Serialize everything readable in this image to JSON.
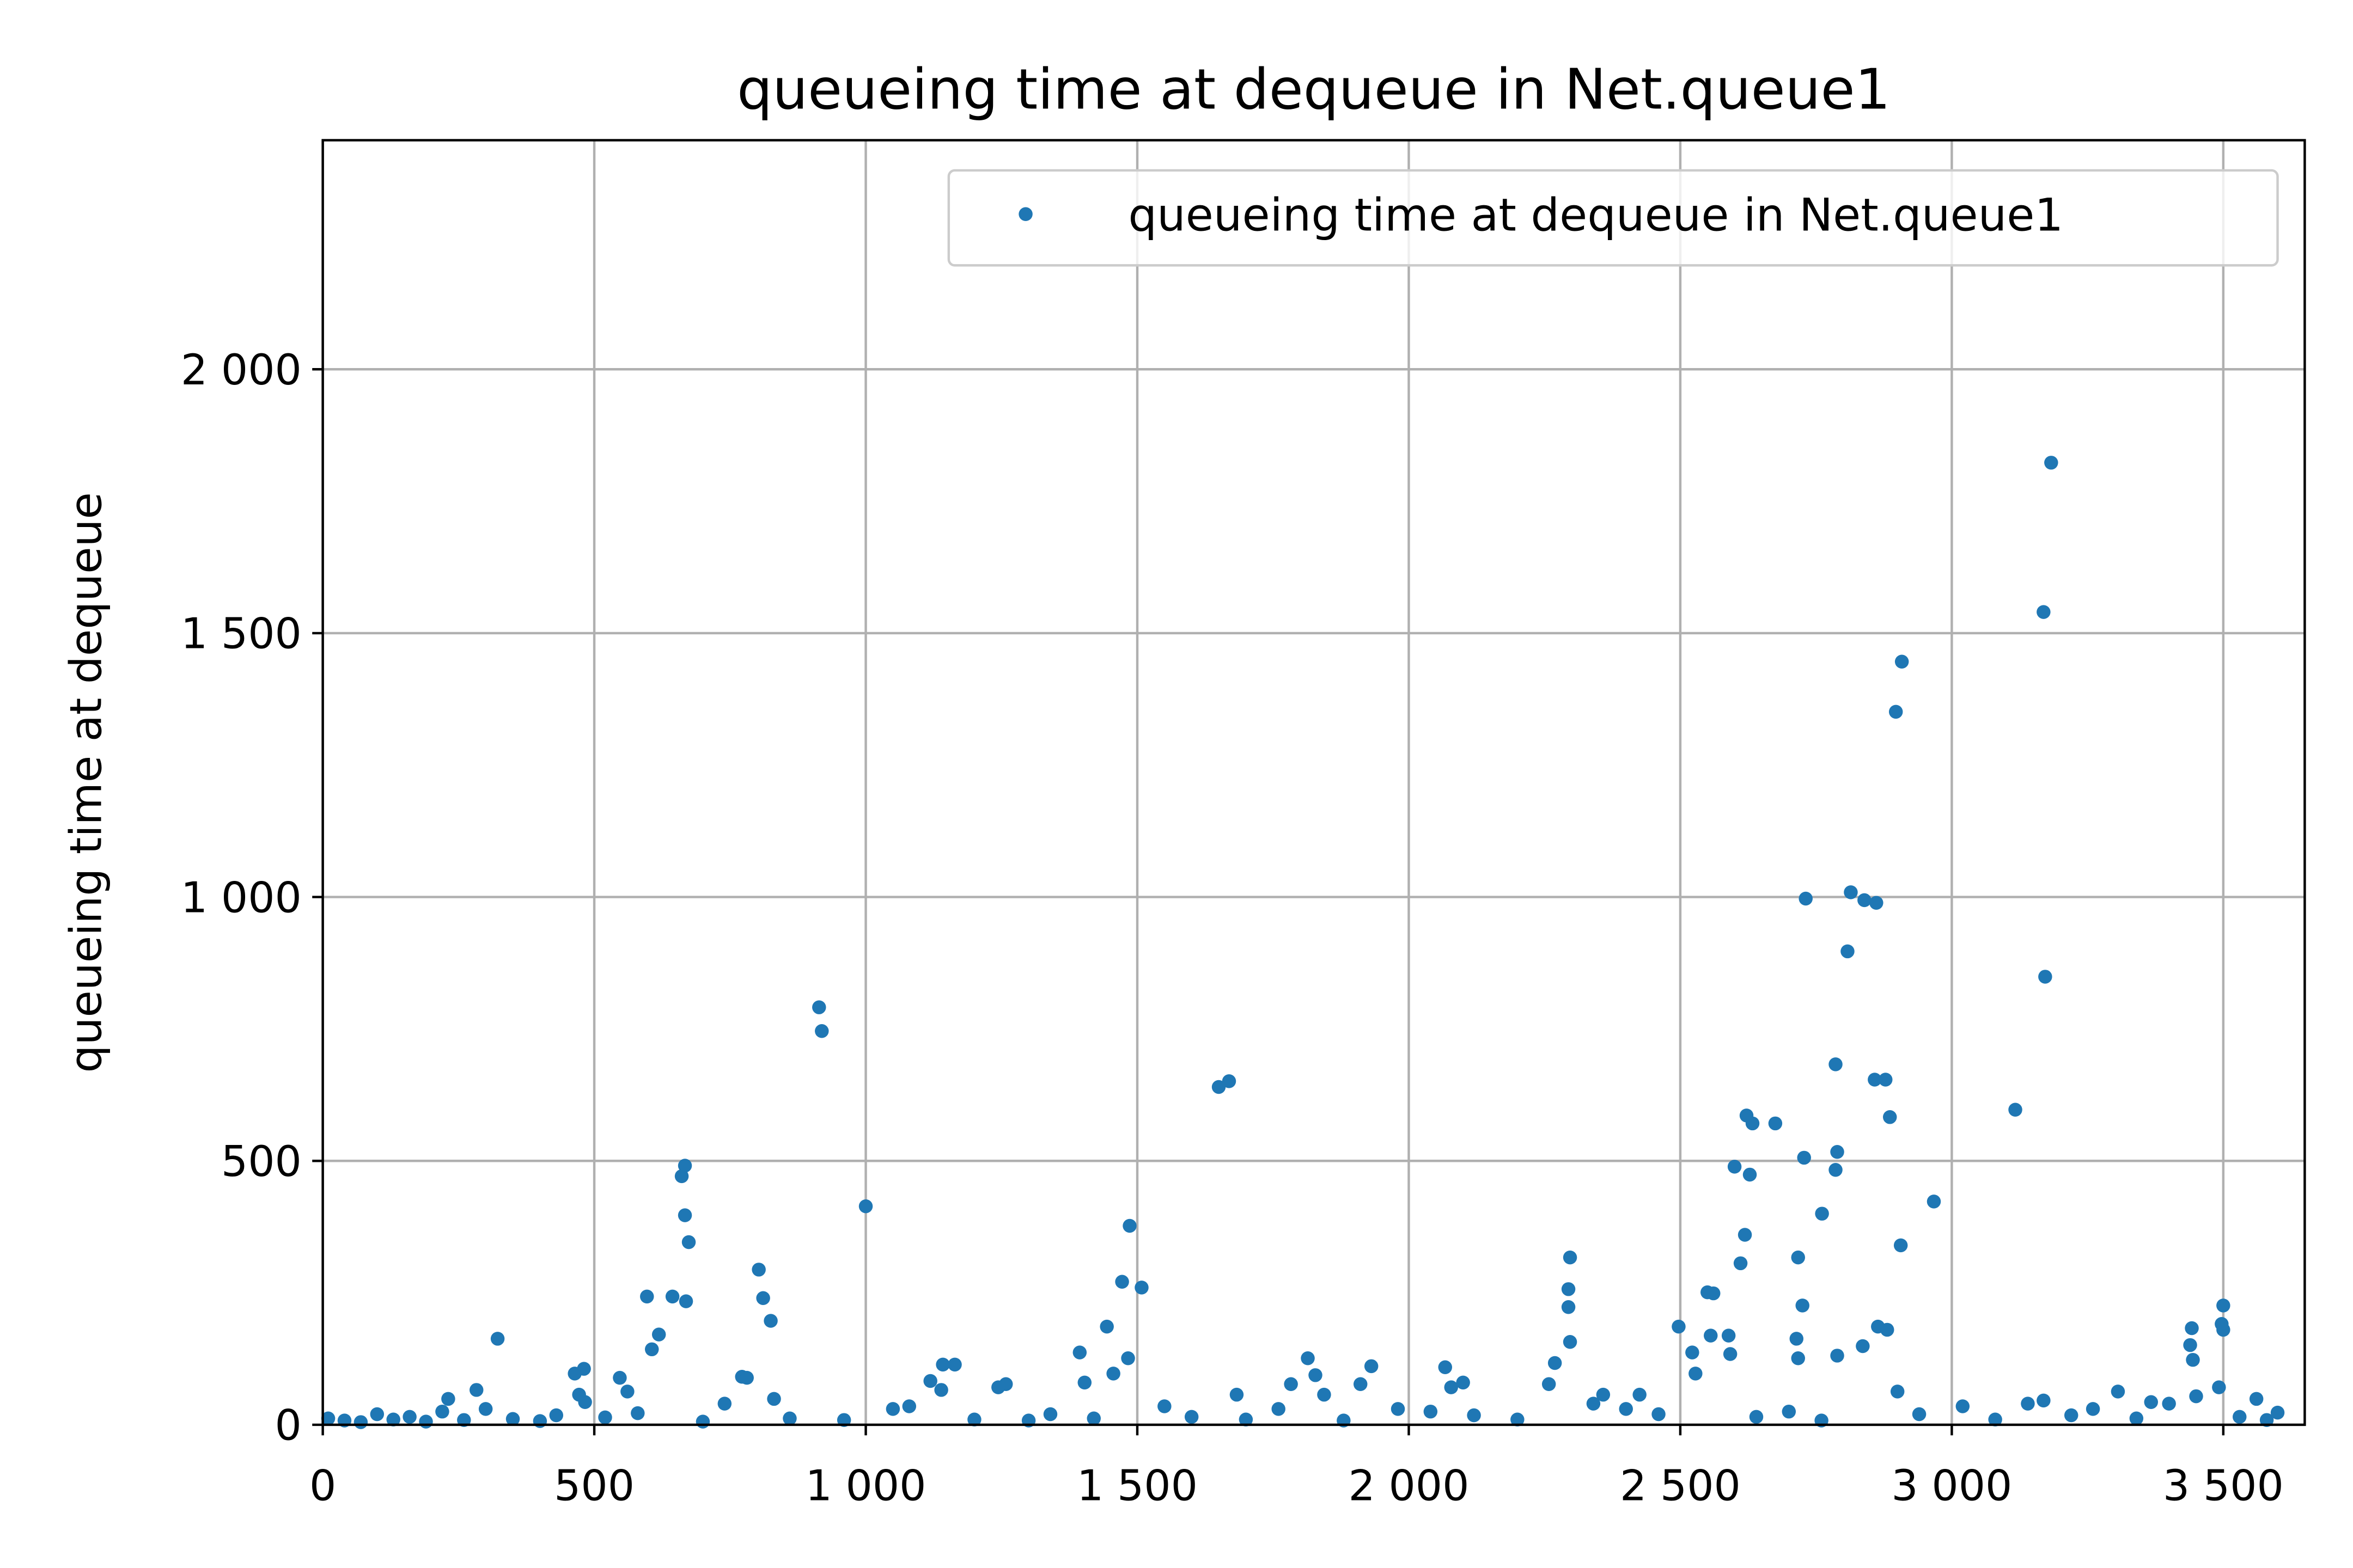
{
  "chart_data": {
    "type": "scatter",
    "title": "queueing time at dequeue in Net.queue1",
    "ylabel": "queueing time at dequeue",
    "xlim": [
      0,
      3650
    ],
    "ylim": [
      0,
      2434
    ],
    "xticks": [
      0,
      500,
      {
        "value": 1000,
        "label": "1 000"
      },
      {
        "value": 1500,
        "label": "1 500"
      },
      {
        "value": 2000,
        "label": "2 000"
      },
      {
        "value": 2500,
        "label": "2 500"
      },
      {
        "value": 3000,
        "label": "3 000"
      },
      {
        "value": 3500,
        "label": "3 500"
      }
    ],
    "yticks": [
      0,
      500,
      {
        "value": 1000,
        "label": "1 000"
      },
      {
        "value": 1500,
        "label": "1 500"
      },
      {
        "value": 2000,
        "label": "2 000"
      }
    ],
    "grid": true,
    "legend": "upper right",
    "series": [
      {
        "name": "queueing time at dequeue in Net.queue1",
        "color": "#1f77b4",
        "x": [
          322,
          597,
          644,
          606,
          619,
          661,
          667,
          667,
          674,
          669,
          464,
          481,
          483,
          472,
          547,
          561,
          283,
          231,
          803,
          811,
          825,
          772,
          781,
          831,
          914,
          919,
          1000,
          1119,
          1142,
          1164,
          1139,
          1244,
          1258,
          1394,
          1403,
          1444,
          1456,
          1472,
          1486,
          1483,
          1508,
          1650,
          1669,
          1683,
          1783,
          1814,
          1828,
          1844,
          1911,
          1931,
          2067,
          2100,
          2078,
          2258,
          2269,
          2297,
          2294,
          2294,
          2297,
          2358,
          2425,
          2497,
          2522,
          2528,
          2550,
          2561,
          2556,
          2589,
          2592,
          2600,
          2611,
          2619,
          2622,
          2633,
          2628,
          2675,
          2717,
          2725,
          2714,
          2717,
          2731,
          2728,
          2761,
          2786,
          2789,
          2786,
          2789,
          2808,
          2814,
          2839,
          2861,
          2836,
          2858,
          2878,
          2886,
          2864,
          2881,
          2897,
          2908,
          2906,
          2900,
          2967,
          3117,
          3169,
          3183,
          3172,
          3169,
          3442,
          3439,
          3444,
          3500,
          3497,
          3500,
          3492,
          3450,
          3367,
          3306,
          3561,
          3600,
          10,
          40,
          70,
          100,
          130,
          160,
          190,
          220,
          260,
          300,
          350,
          400,
          430,
          520,
          580,
          700,
          740,
          860,
          960,
          1050,
          1080,
          1200,
          1300,
          1340,
          1420,
          1550,
          1600,
          1700,
          1760,
          1880,
          1980,
          2040,
          2120,
          2200,
          2340,
          2400,
          2460,
          2640,
          2700,
          2760,
          2940,
          3020,
          3080,
          3140,
          3220,
          3260,
          3340,
          3400,
          3530,
          3580
        ],
        "y": [
          163,
          243,
          243,
          143,
          171,
          471,
          491,
          397,
          346,
          234,
          97,
          106,
          43,
          57,
          89,
          63,
          66,
          49,
          294,
          240,
          197,
          91,
          89,
          49,
          791,
          746,
          414,
          83,
          114,
          114,
          66,
          71,
          77,
          137,
          80,
          186,
          97,
          271,
          377,
          126,
          260,
          640,
          651,
          57,
          77,
          126,
          94,
          57,
          77,
          111,
          109,
          80,
          71,
          77,
          117,
          317,
          257,
          223,
          157,
          57,
          57,
          186,
          137,
          97,
          251,
          249,
          169,
          169,
          134,
          489,
          306,
          360,
          586,
          571,
          474,
          571,
          317,
          226,
          163,
          126,
          997,
          506,
          400,
          483,
          517,
          683,
          131,
          897,
          1009,
          994,
          989,
          149,
          654,
          654,
          583,
          186,
          180,
          1351,
          1446,
          340,
          63,
          423,
          597,
          1540,
          1823,
          849,
          46,
          183,
          151,
          123,
          226,
          191,
          180,
          71,
          54,
          43,
          63,
          49,
          23,
          12,
          8,
          5,
          20,
          10,
          15,
          6,
          25,
          9,
          30,
          11,
          7,
          18,
          14,
          22,
          6,
          40,
          12,
          9,
          30,
          35,
          10,
          8,
          20,
          12,
          35,
          15,
          10,
          30,
          8,
          30,
          25,
          18,
          10,
          40,
          30,
          20,
          15,
          25,
          8,
          20,
          35,
          10,
          40,
          18,
          30,
          12,
          40,
          15,
          9
        ]
      }
    ]
  }
}
